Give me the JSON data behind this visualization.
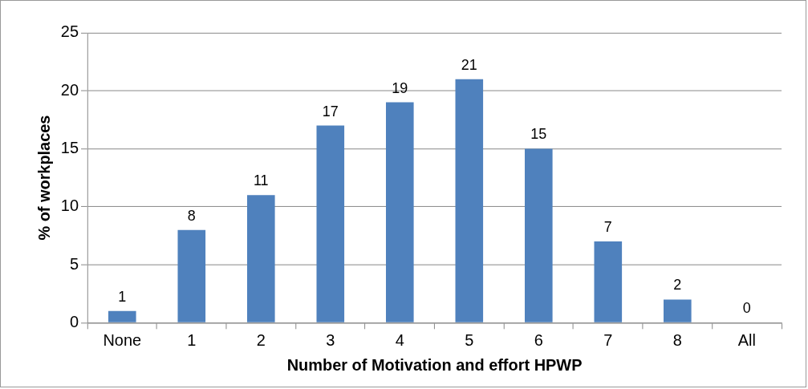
{
  "chart_data": {
    "type": "bar",
    "xlabel": "Number of Motivation and effort HPWP",
    "ylabel": "% of workplaces",
    "categories": [
      "None",
      "1",
      "2",
      "3",
      "4",
      "5",
      "6",
      "7",
      "8",
      "All"
    ],
    "values": [
      1,
      8,
      11,
      17,
      19,
      21,
      15,
      7,
      2,
      0
    ],
    "color": "#4f81bd",
    "ylim": [
      0,
      25
    ],
    "yticks": [
      0,
      5,
      10,
      15,
      20,
      25
    ],
    "grid": "y",
    "data_labels": true,
    "legend": false
  }
}
